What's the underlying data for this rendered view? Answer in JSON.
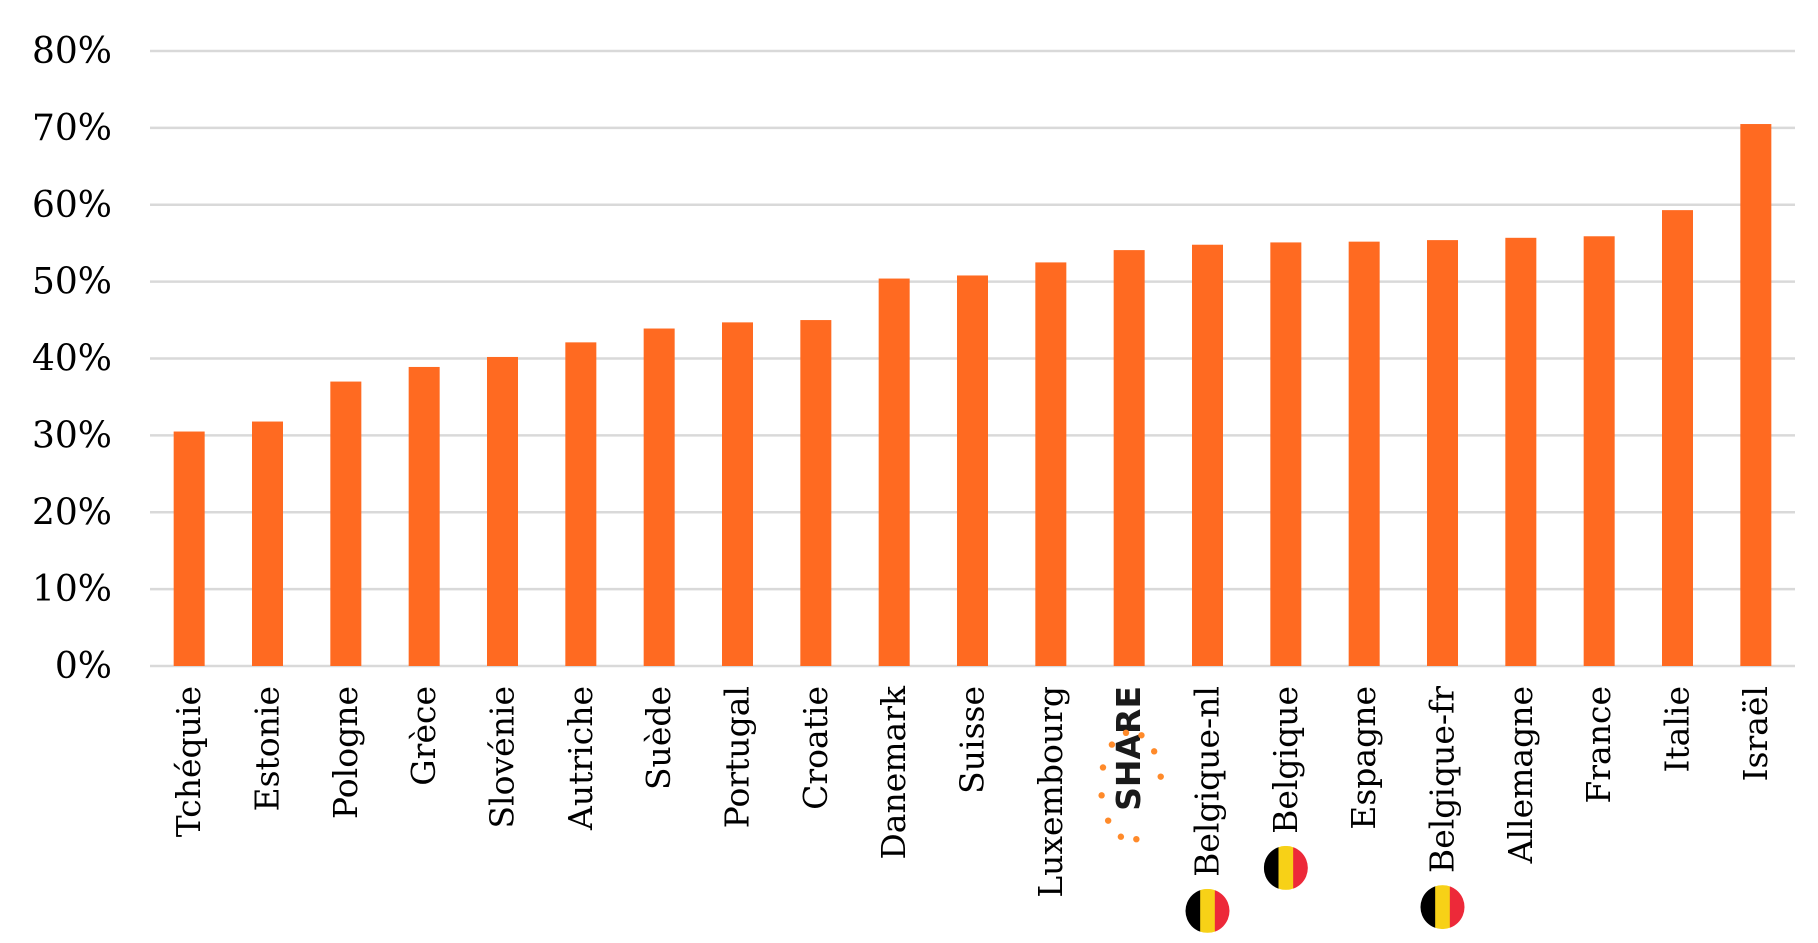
{
  "chart_data": {
    "type": "bar",
    "categories": [
      "Tchéquie",
      "Estonie",
      "Pologne",
      "Grèce",
      "Slovénie",
      "Autriche",
      "Suède",
      "Portugal",
      "Croatie",
      "Danemark",
      "Suisse",
      "Luxembourg",
      "SHARE",
      "Belgique-nl",
      "Belgique",
      "Espagne",
      "Belgique-fr",
      "Allemagne",
      "France",
      "Italie",
      "Israël"
    ],
    "values": [
      30.5,
      31.8,
      37.0,
      38.9,
      40.2,
      42.1,
      43.9,
      44.7,
      45.0,
      50.4,
      50.8,
      52.5,
      54.1,
      54.8,
      55.1,
      55.2,
      55.4,
      55.7,
      55.9,
      59.3,
      70.5
    ],
    "yticks": [
      "0%",
      "10%",
      "20%",
      "30%",
      "40%",
      "50%",
      "60%",
      "70%",
      "80%"
    ],
    "ylim": [
      0,
      80
    ],
    "grid": true,
    "bar_color": "#ff6a21",
    "title": "",
    "xlabel": "",
    "ylabel": "",
    "flag_markers": [
      "Belgique-nl",
      "Belgique",
      "Belgique-fr"
    ],
    "logo_marker": "SHARE",
    "flag_colors": [
      "#000000",
      "#f7d117",
      "#ed2939"
    ]
  }
}
